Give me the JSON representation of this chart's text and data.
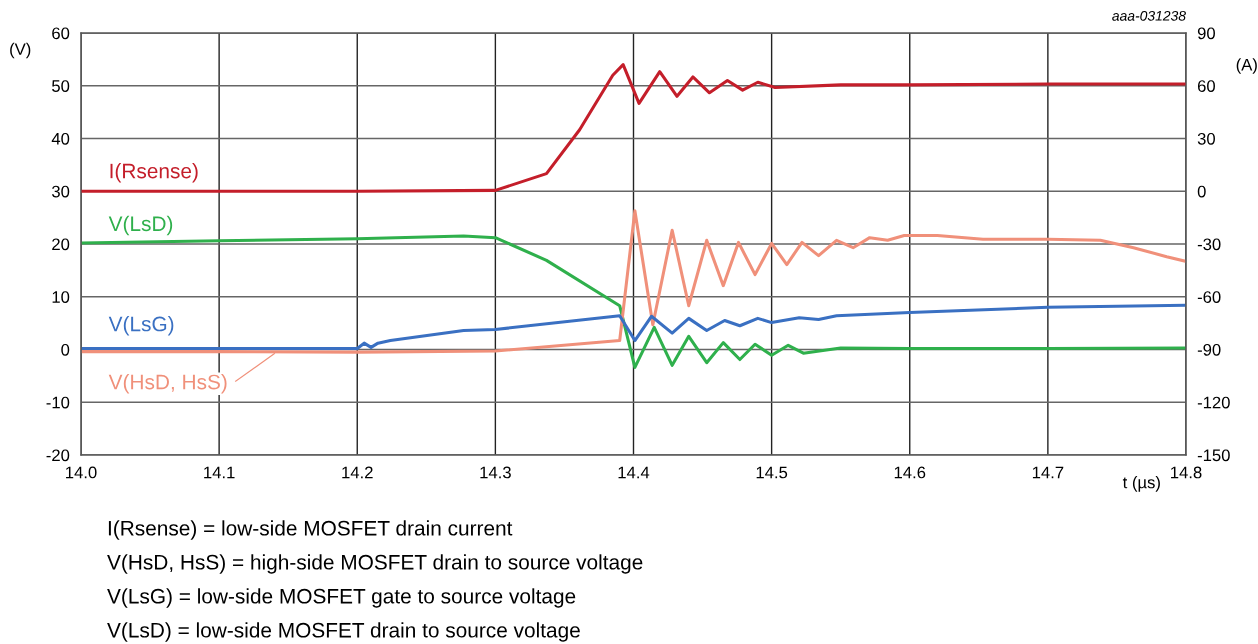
{
  "chart_data": {
    "type": "line",
    "xlabel": "t (µs)",
    "ylabel": "(V)",
    "y2label": "(A)",
    "xlim": [
      14.0,
      14.8
    ],
    "xticks": [
      {
        "value": 14.0,
        "label": "14.0"
      },
      14.1,
      14.2,
      14.3,
      14.4,
      14.5,
      14.6,
      14.7,
      {
        "value": 14.8,
        "label": "14.8"
      }
    ],
    "ylim": [
      -20,
      60
    ],
    "yticks": [
      -20,
      -10,
      0,
      10,
      20,
      30,
      40,
      50,
      60
    ],
    "y2lim": [
      -150,
      90
    ],
    "y2ticks": [
      -150,
      -120,
      -90,
      -60,
      -30,
      0,
      30,
      60,
      90
    ],
    "grid": true,
    "marker": "none",
    "line_style": "solid",
    "series": [
      {
        "name": "V(LsD)",
        "color": "#2fb04c",
        "x": [
          14.0,
          14.1,
          14.2,
          14.277,
          14.3,
          14.337,
          14.39,
          14.401,
          14.415,
          14.428,
          14.44,
          14.453,
          14.465,
          14.477,
          14.488,
          14.5,
          14.512,
          14.523,
          14.55,
          14.6,
          14.7,
          14.8
        ],
        "values": [
          20.2,
          20.6,
          21.0,
          21.5,
          21.2,
          16.9,
          8.3,
          -3.4,
          4.2,
          -3.0,
          2.5,
          -2.5,
          1.3,
          -1.9,
          1.0,
          -1.1,
          0.8,
          -0.7,
          0.3,
          0.2,
          0.2,
          0.3
        ]
      },
      {
        "name": "V(HsD, HsS)",
        "color": "#f0907a",
        "x": [
          14.0,
          14.1,
          14.2,
          14.3,
          14.39,
          14.401,
          14.414,
          14.428,
          14.44,
          14.453,
          14.465,
          14.476,
          14.488,
          14.5,
          14.511,
          14.522,
          14.534,
          14.547,
          14.559,
          14.571,
          14.584,
          14.596,
          14.62,
          14.653,
          14.7,
          14.738,
          14.762,
          14.786,
          14.8
        ],
        "values": [
          -0.4,
          -0.4,
          -0.5,
          -0.3,
          1.7,
          26.3,
          4.7,
          22.6,
          8.3,
          20.7,
          12.1,
          20.3,
          14.2,
          20.1,
          16.1,
          20.3,
          17.8,
          20.7,
          19.3,
          21.2,
          20.7,
          21.6,
          21.6,
          20.9,
          20.9,
          20.7,
          19.3,
          17.6,
          16.7
        ]
      },
      {
        "name": "V(LsG)",
        "color": "#3a70c2",
        "x": [
          14.0,
          14.1,
          14.2,
          14.205,
          14.21,
          14.215,
          14.224,
          14.277,
          14.3,
          14.39,
          14.401,
          14.413,
          14.428,
          14.44,
          14.453,
          14.466,
          14.477,
          14.49,
          14.5,
          14.52,
          14.534,
          14.547,
          14.6,
          14.7,
          14.8
        ],
        "values": [
          0.2,
          0.2,
          0.2,
          1.2,
          0.4,
          1.2,
          1.7,
          3.6,
          3.8,
          6.4,
          1.7,
          6.3,
          3.1,
          5.9,
          3.6,
          5.5,
          4.5,
          5.9,
          5.1,
          6.0,
          5.7,
          6.4,
          7.0,
          8.0,
          8.4
        ]
      },
      {
        "name": "I(Rsense)",
        "color": "#c41e2a",
        "axis": "y2",
        "x": [
          14.0,
          14.1,
          14.2,
          14.3,
          14.337,
          14.361,
          14.385,
          14.3925,
          14.404,
          14.419,
          14.4315,
          14.443,
          14.455,
          14.468,
          14.479,
          14.49,
          14.5025,
          14.55,
          14.6,
          14.7,
          14.8
        ],
        "values": [
          0,
          0,
          0,
          0.5,
          10,
          35,
          66,
          72,
          50,
          68,
          54,
          65,
          56,
          63,
          57.5,
          62,
          59,
          60.5,
          60.5,
          61,
          61
        ]
      }
    ],
    "annotations": [
      "aaa-031238",
      "I(Rsense) = low-side MOSFET drain current",
      "V(HsD, HsS) = high-side MOSFET drain to source voltage",
      "V(LsG) = low-side MOSFET gate to source voltage",
      "V(LsD) = low-side MOSFET drain to source voltage"
    ]
  }
}
